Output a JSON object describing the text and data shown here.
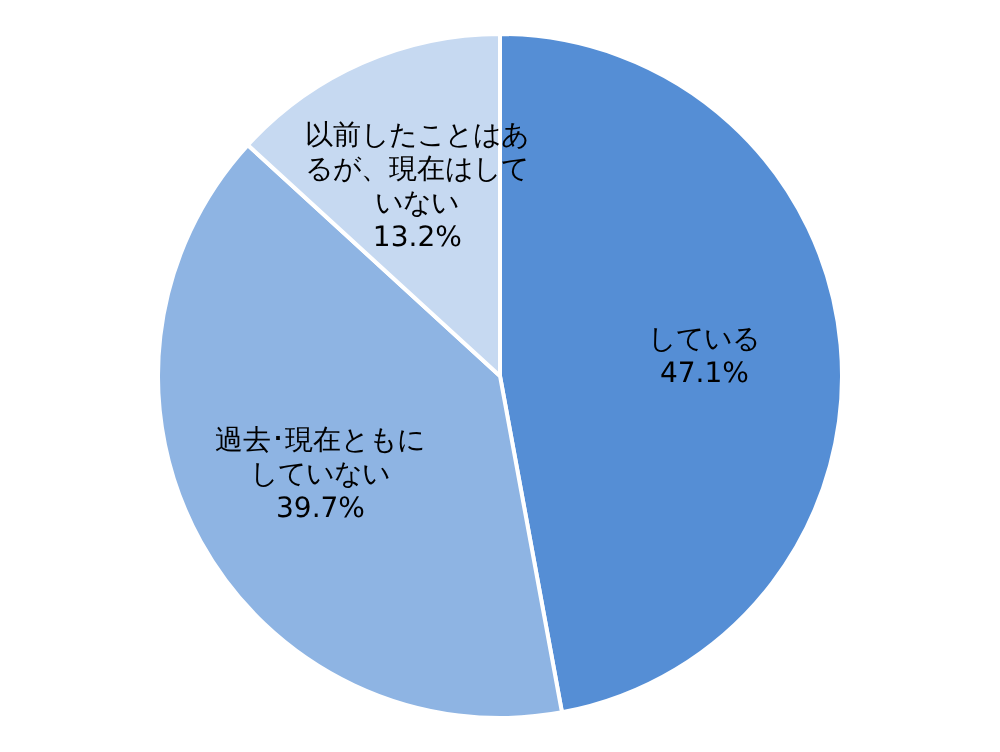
{
  "chart_data": {
    "type": "pie",
    "categories": [
      "している",
      "過去･現在ともにしていない",
      "以前したことはあるが、現在はしていない"
    ],
    "values": [
      47.1,
      39.7,
      13.2
    ],
    "colors": [
      "#558ed5",
      "#8eb4e3",
      "#c6d9f1"
    ],
    "value_labels": [
      "47.1%",
      "39.7%",
      "13.2%"
    ],
    "legend": false
  }
}
